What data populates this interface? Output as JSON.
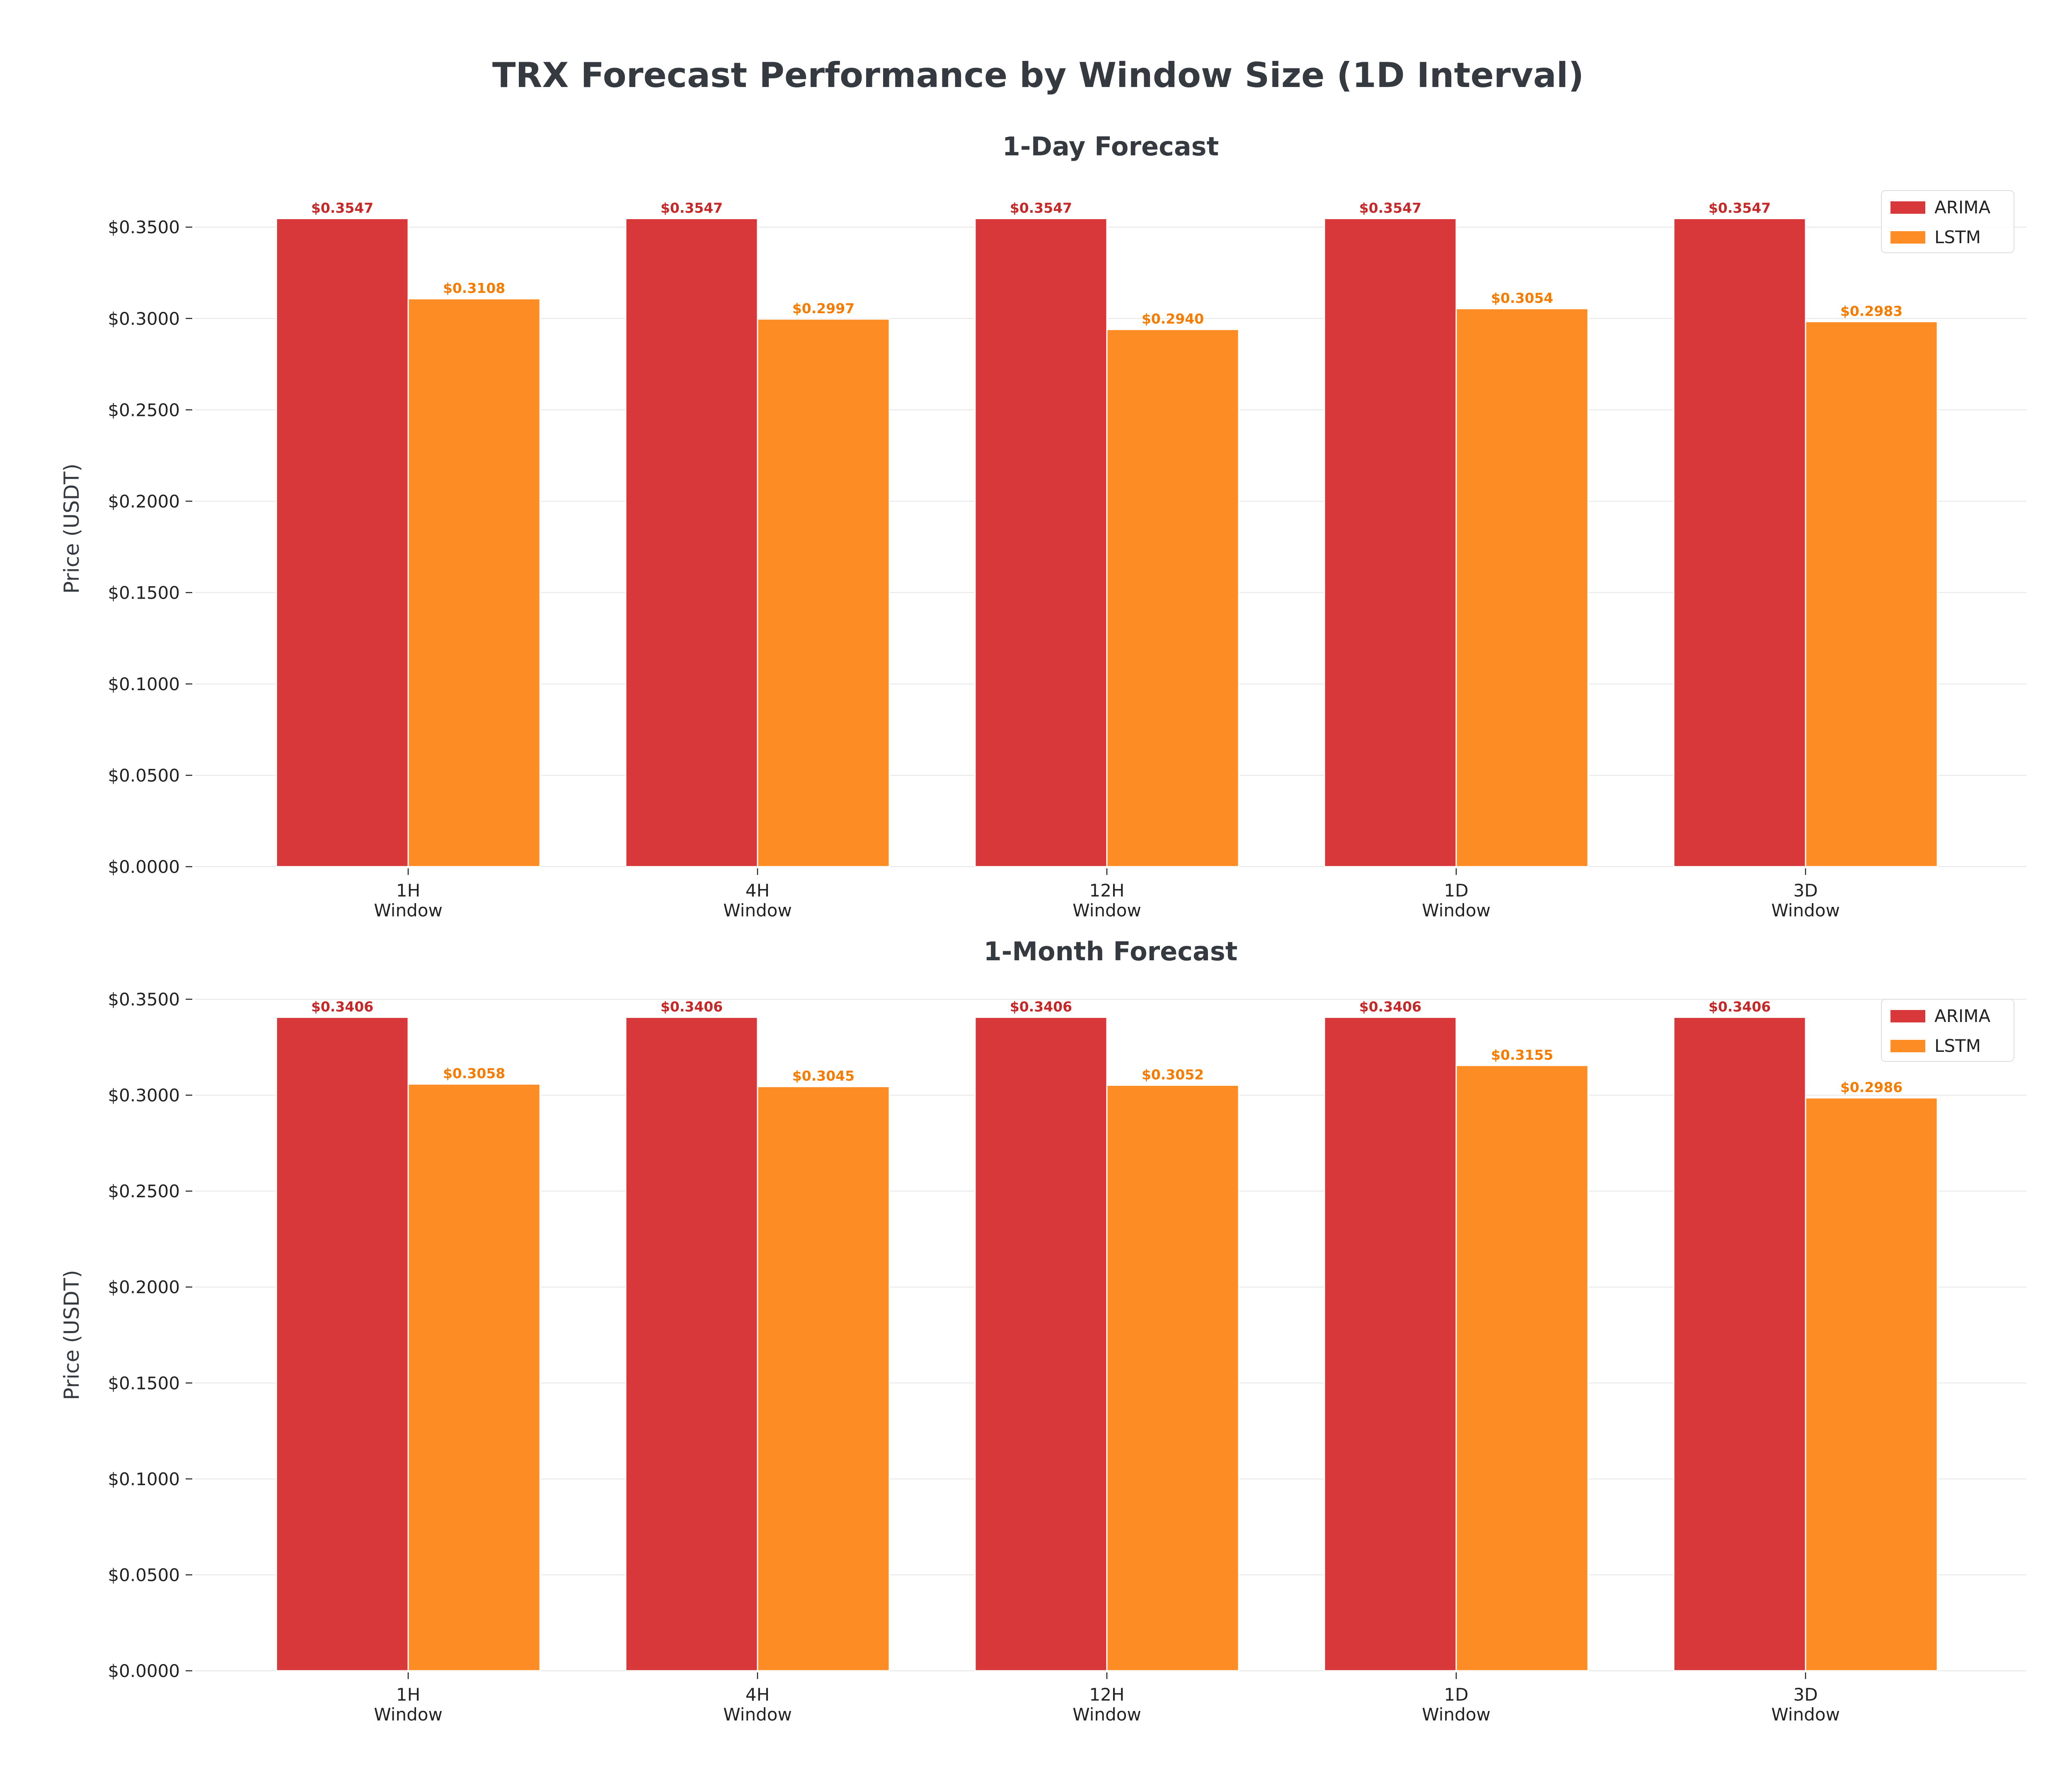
{
  "figure_title": "TRX Forecast Performance by Window Size (1D Interval)",
  "colors": {
    "arima": "#d9383a",
    "lstm": "#fd8c25",
    "text": "#343a40",
    "grid": "#e6e6e6"
  },
  "chart_data": [
    {
      "type": "bar",
      "title": "1-Day Forecast",
      "xlabel": "",
      "ylabel": "Price (USDT)",
      "categories": [
        "1H\nWindow",
        "4H\nWindow",
        "12H\nWindow",
        "1D\nWindow",
        "3D\nWindow"
      ],
      "ylim": [
        0,
        0.37
      ],
      "yticks": [
        0.0,
        0.05,
        0.1,
        0.15,
        0.2,
        0.25,
        0.3,
        0.35
      ],
      "ytick_labels": [
        "$0.0000",
        "$0.0500",
        "$0.1000",
        "$0.1500",
        "$0.2000",
        "$0.2500",
        "$0.3000",
        "$0.3500"
      ],
      "grid": true,
      "legend_position": "top-right",
      "series": [
        {
          "name": "ARIMA",
          "color": "#d9383a",
          "values": [
            0.3547,
            0.3547,
            0.3547,
            0.3547,
            0.3547
          ],
          "labels": [
            "$0.3547",
            "$0.3547",
            "$0.3547",
            "$0.3547",
            "$0.3547"
          ]
        },
        {
          "name": "LSTM",
          "color": "#fd8c25",
          "values": [
            0.3108,
            0.2997,
            0.294,
            0.3054,
            0.2983
          ],
          "labels": [
            "$0.3108",
            "$0.2997",
            "$0.2940",
            "$0.3054",
            "$0.2983"
          ]
        }
      ]
    },
    {
      "type": "bar",
      "title": "1-Month Forecast",
      "xlabel": "",
      "ylabel": "Price (USDT)",
      "categories": [
        "1H\nWindow",
        "4H\nWindow",
        "12H\nWindow",
        "1D\nWindow",
        "3D\nWindow"
      ],
      "ylim": [
        0,
        0.35
      ],
      "yticks": [
        0.0,
        0.05,
        0.1,
        0.15,
        0.2,
        0.25,
        0.3,
        0.35
      ],
      "ytick_labels": [
        "$0.0000",
        "$0.0500",
        "$0.1000",
        "$0.1500",
        "$0.2000",
        "$0.2500",
        "$0.3000",
        "$0.3500"
      ],
      "grid": true,
      "legend_position": "top-right",
      "series": [
        {
          "name": "ARIMA",
          "color": "#d9383a",
          "values": [
            0.3406,
            0.3406,
            0.3406,
            0.3406,
            0.3406
          ],
          "labels": [
            "$0.3406",
            "$0.3406",
            "$0.3406",
            "$0.3406",
            "$0.3406"
          ]
        },
        {
          "name": "LSTM",
          "color": "#fd8c25",
          "values": [
            0.3058,
            0.3045,
            0.3052,
            0.3155,
            0.2986
          ],
          "labels": [
            "$0.3058",
            "$0.3045",
            "$0.3052",
            "$0.3155",
            "$0.2986"
          ]
        }
      ]
    }
  ]
}
